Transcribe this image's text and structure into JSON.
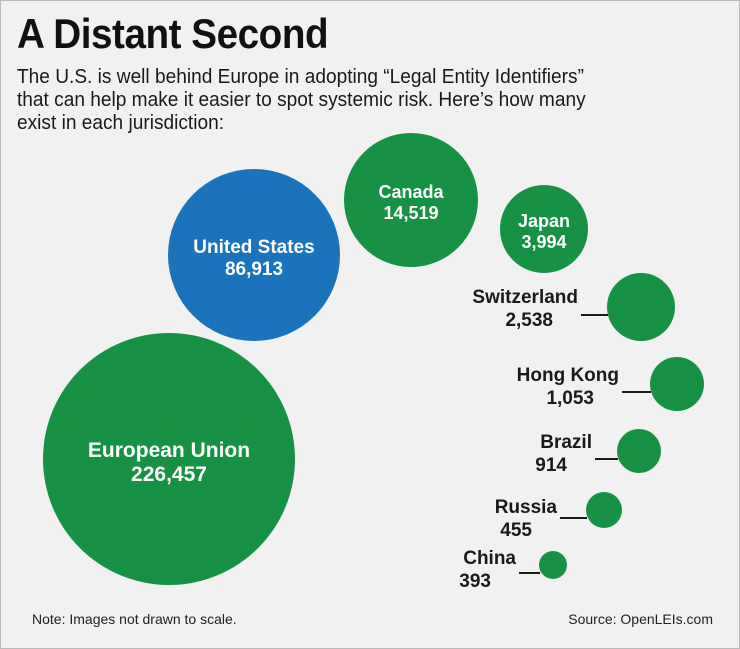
{
  "header": {
    "title": "A Distant Second",
    "subtitle_lines": [
      "The U.S. is well behind Europe in adopting “Legal Entity Identifiers”",
      "that can help make it easier to spot systemic risk. Here’s how many",
      "exist in each jurisdiction:"
    ]
  },
  "footer": {
    "note": "Note: Images not drawn to scale.",
    "source": "Source: OpenLEIs.com"
  },
  "colors": {
    "highlight": "#1a73bb",
    "default": "#179245",
    "label_inside": "#ffffff",
    "label_outside": "#1a1a1a",
    "background": "#f1f1f1"
  },
  "chart_data": {
    "type": "bubble",
    "title": "A Distant Second",
    "data": [
      {
        "name": "European Union",
        "value_label": "226,457",
        "value": 226457,
        "highlight": false
      },
      {
        "name": "United States",
        "value_label": "86,913",
        "value": 86913,
        "highlight": true
      },
      {
        "name": "Canada",
        "value_label": "14,519",
        "value": 14519,
        "highlight": false
      },
      {
        "name": "Japan",
        "value_label": "3,994",
        "value": 3994,
        "highlight": false
      },
      {
        "name": "Switzerland",
        "value_label": "2,538",
        "value": 2538,
        "highlight": false
      },
      {
        "name": "Hong Kong",
        "value_label": "1,053",
        "value": 1053,
        "highlight": false
      },
      {
        "name": "Brazil",
        "value_label": "914",
        "value": 914,
        "highlight": false
      },
      {
        "name": "Russia",
        "value_label": "455",
        "value": 455,
        "highlight": false
      },
      {
        "name": "China",
        "value_label": "393",
        "value": 393,
        "highlight": false
      }
    ]
  }
}
